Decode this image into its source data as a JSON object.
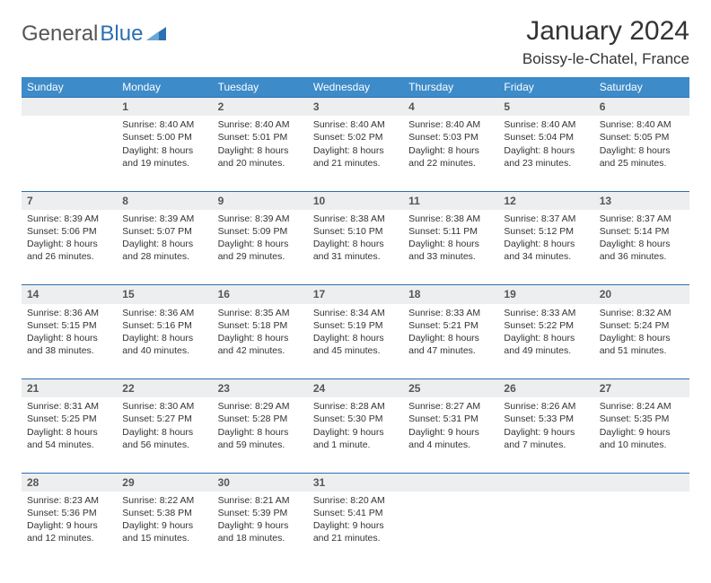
{
  "logo": {
    "text_gray": "General",
    "text_blue": "Blue"
  },
  "title": "January 2024",
  "location": "Boissy-le-Chatel, France",
  "colors": {
    "header_bg": "#3d8bc9",
    "header_text": "#ffffff",
    "daynum_bg": "#eceeef",
    "row_divider": "#2c6fb3",
    "logo_gray": "#555555",
    "logo_blue": "#2c6fb3",
    "body_text": "#333333",
    "background": "#ffffff"
  },
  "typography": {
    "title_fontsize": 30,
    "location_fontsize": 17,
    "header_fontsize": 12,
    "daynum_fontsize": 12,
    "cell_fontsize": 10.5
  },
  "day_headers": [
    "Sunday",
    "Monday",
    "Tuesday",
    "Wednesday",
    "Thursday",
    "Friday",
    "Saturday"
  ],
  "weeks": [
    {
      "nums": [
        "",
        "1",
        "2",
        "3",
        "4",
        "5",
        "6"
      ],
      "cells": [
        {
          "sunrise": "",
          "sunset": "",
          "daylight": ""
        },
        {
          "sunrise": "Sunrise: 8:40 AM",
          "sunset": "Sunset: 5:00 PM",
          "daylight": "Daylight: 8 hours and 19 minutes."
        },
        {
          "sunrise": "Sunrise: 8:40 AM",
          "sunset": "Sunset: 5:01 PM",
          "daylight": "Daylight: 8 hours and 20 minutes."
        },
        {
          "sunrise": "Sunrise: 8:40 AM",
          "sunset": "Sunset: 5:02 PM",
          "daylight": "Daylight: 8 hours and 21 minutes."
        },
        {
          "sunrise": "Sunrise: 8:40 AM",
          "sunset": "Sunset: 5:03 PM",
          "daylight": "Daylight: 8 hours and 22 minutes."
        },
        {
          "sunrise": "Sunrise: 8:40 AM",
          "sunset": "Sunset: 5:04 PM",
          "daylight": "Daylight: 8 hours and 23 minutes."
        },
        {
          "sunrise": "Sunrise: 8:40 AM",
          "sunset": "Sunset: 5:05 PM",
          "daylight": "Daylight: 8 hours and 25 minutes."
        }
      ]
    },
    {
      "nums": [
        "7",
        "8",
        "9",
        "10",
        "11",
        "12",
        "13"
      ],
      "cells": [
        {
          "sunrise": "Sunrise: 8:39 AM",
          "sunset": "Sunset: 5:06 PM",
          "daylight": "Daylight: 8 hours and 26 minutes."
        },
        {
          "sunrise": "Sunrise: 8:39 AM",
          "sunset": "Sunset: 5:07 PM",
          "daylight": "Daylight: 8 hours and 28 minutes."
        },
        {
          "sunrise": "Sunrise: 8:39 AM",
          "sunset": "Sunset: 5:09 PM",
          "daylight": "Daylight: 8 hours and 29 minutes."
        },
        {
          "sunrise": "Sunrise: 8:38 AM",
          "sunset": "Sunset: 5:10 PM",
          "daylight": "Daylight: 8 hours and 31 minutes."
        },
        {
          "sunrise": "Sunrise: 8:38 AM",
          "sunset": "Sunset: 5:11 PM",
          "daylight": "Daylight: 8 hours and 33 minutes."
        },
        {
          "sunrise": "Sunrise: 8:37 AM",
          "sunset": "Sunset: 5:12 PM",
          "daylight": "Daylight: 8 hours and 34 minutes."
        },
        {
          "sunrise": "Sunrise: 8:37 AM",
          "sunset": "Sunset: 5:14 PM",
          "daylight": "Daylight: 8 hours and 36 minutes."
        }
      ]
    },
    {
      "nums": [
        "14",
        "15",
        "16",
        "17",
        "18",
        "19",
        "20"
      ],
      "cells": [
        {
          "sunrise": "Sunrise: 8:36 AM",
          "sunset": "Sunset: 5:15 PM",
          "daylight": "Daylight: 8 hours and 38 minutes."
        },
        {
          "sunrise": "Sunrise: 8:36 AM",
          "sunset": "Sunset: 5:16 PM",
          "daylight": "Daylight: 8 hours and 40 minutes."
        },
        {
          "sunrise": "Sunrise: 8:35 AM",
          "sunset": "Sunset: 5:18 PM",
          "daylight": "Daylight: 8 hours and 42 minutes."
        },
        {
          "sunrise": "Sunrise: 8:34 AM",
          "sunset": "Sunset: 5:19 PM",
          "daylight": "Daylight: 8 hours and 45 minutes."
        },
        {
          "sunrise": "Sunrise: 8:33 AM",
          "sunset": "Sunset: 5:21 PM",
          "daylight": "Daylight: 8 hours and 47 minutes."
        },
        {
          "sunrise": "Sunrise: 8:33 AM",
          "sunset": "Sunset: 5:22 PM",
          "daylight": "Daylight: 8 hours and 49 minutes."
        },
        {
          "sunrise": "Sunrise: 8:32 AM",
          "sunset": "Sunset: 5:24 PM",
          "daylight": "Daylight: 8 hours and 51 minutes."
        }
      ]
    },
    {
      "nums": [
        "21",
        "22",
        "23",
        "24",
        "25",
        "26",
        "27"
      ],
      "cells": [
        {
          "sunrise": "Sunrise: 8:31 AM",
          "sunset": "Sunset: 5:25 PM",
          "daylight": "Daylight: 8 hours and 54 minutes."
        },
        {
          "sunrise": "Sunrise: 8:30 AM",
          "sunset": "Sunset: 5:27 PM",
          "daylight": "Daylight: 8 hours and 56 minutes."
        },
        {
          "sunrise": "Sunrise: 8:29 AM",
          "sunset": "Sunset: 5:28 PM",
          "daylight": "Daylight: 8 hours and 59 minutes."
        },
        {
          "sunrise": "Sunrise: 8:28 AM",
          "sunset": "Sunset: 5:30 PM",
          "daylight": "Daylight: 9 hours and 1 minute."
        },
        {
          "sunrise": "Sunrise: 8:27 AM",
          "sunset": "Sunset: 5:31 PM",
          "daylight": "Daylight: 9 hours and 4 minutes."
        },
        {
          "sunrise": "Sunrise: 8:26 AM",
          "sunset": "Sunset: 5:33 PM",
          "daylight": "Daylight: 9 hours and 7 minutes."
        },
        {
          "sunrise": "Sunrise: 8:24 AM",
          "sunset": "Sunset: 5:35 PM",
          "daylight": "Daylight: 9 hours and 10 minutes."
        }
      ]
    },
    {
      "nums": [
        "28",
        "29",
        "30",
        "31",
        "",
        "",
        ""
      ],
      "cells": [
        {
          "sunrise": "Sunrise: 8:23 AM",
          "sunset": "Sunset: 5:36 PM",
          "daylight": "Daylight: 9 hours and 12 minutes."
        },
        {
          "sunrise": "Sunrise: 8:22 AM",
          "sunset": "Sunset: 5:38 PM",
          "daylight": "Daylight: 9 hours and 15 minutes."
        },
        {
          "sunrise": "Sunrise: 8:21 AM",
          "sunset": "Sunset: 5:39 PM",
          "daylight": "Daylight: 9 hours and 18 minutes."
        },
        {
          "sunrise": "Sunrise: 8:20 AM",
          "sunset": "Sunset: 5:41 PM",
          "daylight": "Daylight: 9 hours and 21 minutes."
        },
        {
          "sunrise": "",
          "sunset": "",
          "daylight": ""
        },
        {
          "sunrise": "",
          "sunset": "",
          "daylight": ""
        },
        {
          "sunrise": "",
          "sunset": "",
          "daylight": ""
        }
      ]
    }
  ]
}
